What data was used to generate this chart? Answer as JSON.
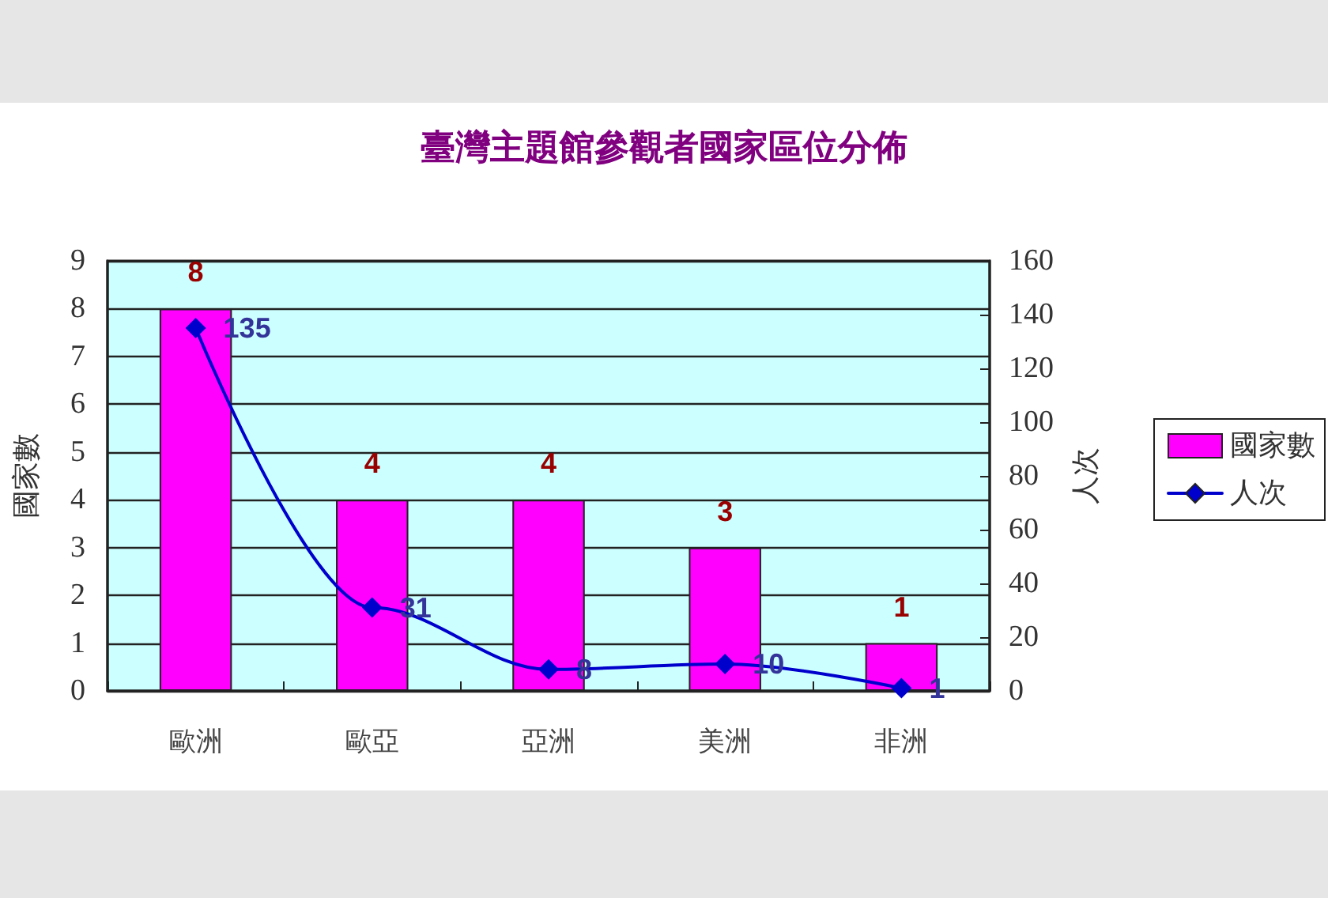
{
  "chart_data": {
    "type": "bar",
    "title": "臺灣主題館參觀者國家區位分佈",
    "ylabel": "國家數",
    "y2label": "人次",
    "categories": [
      "歐洲",
      "歐亞",
      "亞洲",
      "美洲",
      "非洲"
    ],
    "series": [
      {
        "name": "國家數",
        "color": "#ff00ff",
        "values": [
          8,
          4,
          4,
          3,
          1
        ]
      },
      {
        "name": "人次",
        "type": "line",
        "axis": "y2",
        "color": "#0000cc",
        "values": [
          135,
          31,
          8,
          10,
          1
        ]
      }
    ],
    "ylim": [
      0,
      9
    ],
    "yticks": [
      0,
      1,
      2,
      3,
      4,
      5,
      6,
      7,
      8,
      9
    ],
    "y2lim": [
      0,
      160
    ],
    "y2ticks": [
      0,
      20,
      40,
      60,
      80,
      100,
      120,
      140,
      160
    ],
    "grid": "y",
    "legend": "right",
    "marker": "diamond",
    "data_labels": true
  }
}
